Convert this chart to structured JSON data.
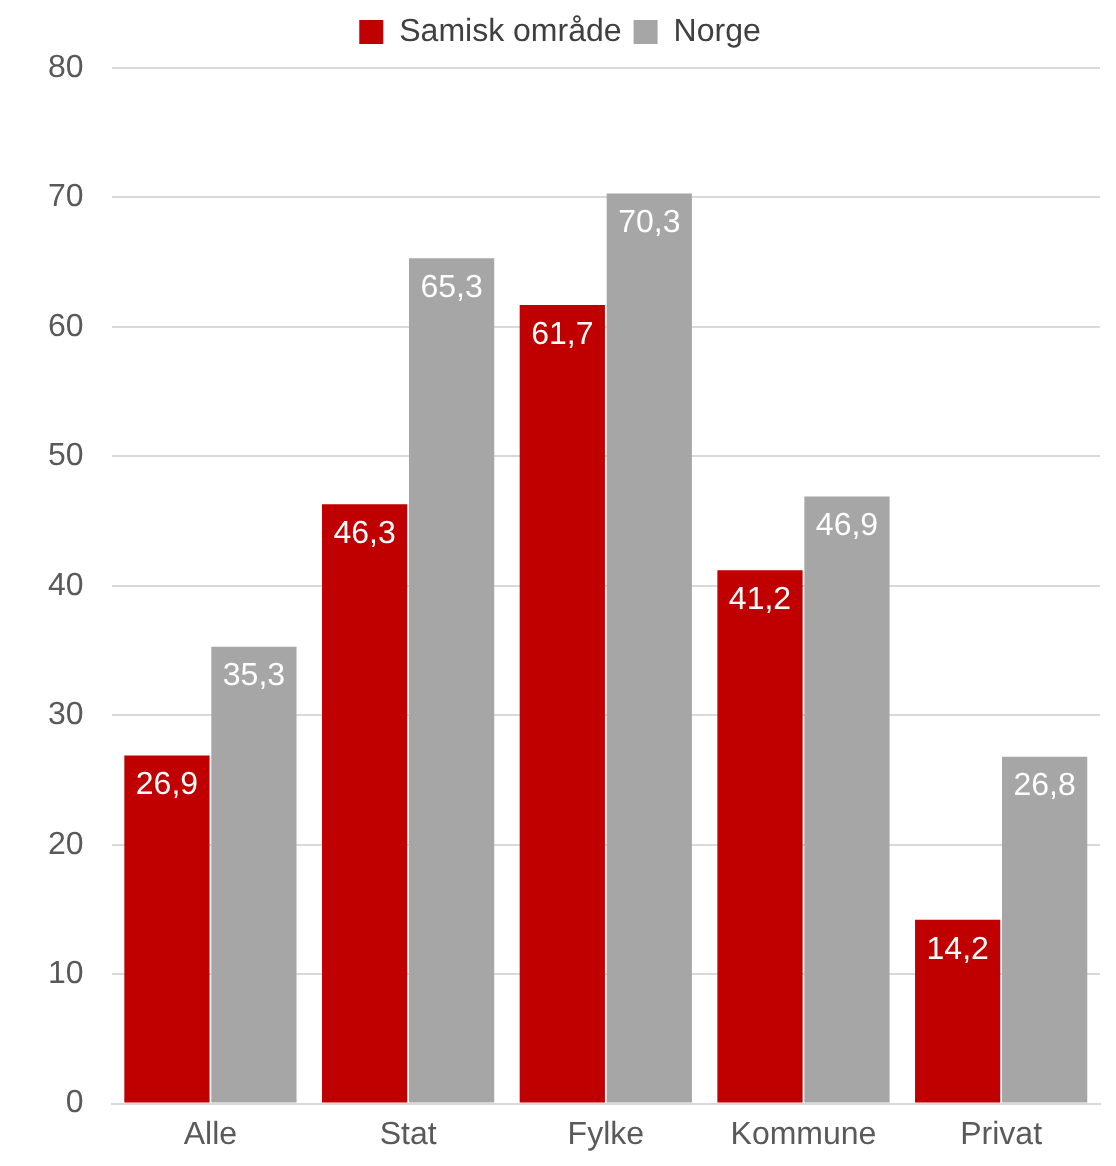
{
  "chart_data": {
    "type": "bar",
    "categories": [
      "Alle",
      "Stat",
      "Fylke",
      "Kommune",
      "Privat"
    ],
    "series": [
      {
        "name": "Samisk område",
        "color": "#c00000",
        "values": [
          26.9,
          46.3,
          61.7,
          41.2,
          14.2
        ],
        "value_labels": [
          "26,9",
          "46,3",
          "61,7",
          "41,2",
          "14,2"
        ]
      },
      {
        "name": "Norge",
        "color": "#a6a6a6",
        "values": [
          35.3,
          65.3,
          70.3,
          46.9,
          26.8
        ],
        "value_labels": [
          "35,3",
          "65,3",
          "70,3",
          "46,9",
          "26,8"
        ]
      }
    ],
    "ylim": [
      0,
      80
    ],
    "yticks": [
      0,
      10,
      20,
      30,
      40,
      50,
      60,
      70,
      80
    ],
    "grid": "y",
    "legend": "top"
  }
}
